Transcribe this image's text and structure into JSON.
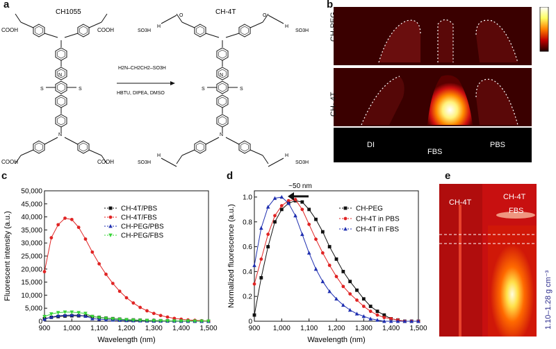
{
  "panels": {
    "a": {
      "letter": "a",
      "reactant": "CH1055",
      "product": "CH-4T",
      "reagent_formula": "H2N–CH2CH2–SO3H",
      "conditions": "HBTU, DIPEA, DMSO",
      "acid": "COOH",
      "sulfonate": "SO3H",
      "nh": "H",
      "n": "N",
      "s": "S",
      "o": "O"
    },
    "b": {
      "letter": "b",
      "row1_label": "CH-PEG",
      "row2_label": "CH- 4T",
      "labels": [
        "DI",
        "FBS",
        "PBS"
      ]
    },
    "c": {
      "letter": "c"
    },
    "d": {
      "letter": "d",
      "shift_label": "~50 nm"
    },
    "e": {
      "letter": "e",
      "tube1_label": "CH-4T",
      "tube2_label": "CH-4T",
      "tube2_sub": "FBS",
      "side_label": "1.10–1.28 g cm⁻³"
    }
  },
  "chart_data": [
    {
      "type": "scatter",
      "title": "",
      "xlabel": "Wavelength (nm)",
      "ylabel": "Fluorescent intensity (a.u.)",
      "xlim": [
        900,
        1500
      ],
      "ylim": [
        0,
        50000
      ],
      "xticks": [
        "900",
        "1,000",
        "1,100",
        "1,200",
        "1,300",
        "1,400",
        "1,500"
      ],
      "yticks": [
        "0",
        "5,000",
        "10,000",
        "15,000",
        "20,000",
        "25,000",
        "30,000",
        "35,000",
        "40,000",
        "45,000",
        "50,000"
      ],
      "x": [
        900,
        925,
        950,
        975,
        1000,
        1025,
        1050,
        1075,
        1100,
        1125,
        1150,
        1175,
        1200,
        1225,
        1250,
        1275,
        1300,
        1325,
        1350,
        1375,
        1400,
        1425,
        1450,
        1475,
        1500
      ],
      "series": [
        {
          "name": "CH-4T/PBS",
          "color": "#111111",
          "marker": "square",
          "values": [
            1000,
            1500,
            1800,
            2000,
            2100,
            2100,
            2000,
            1800,
            1500,
            1200,
            1000,
            800,
            600,
            500,
            400,
            300,
            250,
            200,
            150,
            100,
            80,
            60,
            50,
            40,
            30
          ]
        },
        {
          "name": "CH-4T/FBS",
          "color": "#e02424",
          "marker": "circle",
          "values": [
            19000,
            32000,
            37000,
            39500,
            39000,
            36000,
            31500,
            26500,
            22000,
            18000,
            14500,
            11500,
            9000,
            7000,
            5300,
            4000,
            3000,
            2200,
            1600,
            1100,
            800,
            500,
            350,
            200,
            100
          ]
        },
        {
          "name": "CH-PEG/PBS",
          "color": "#1f2fb0",
          "marker": "triangle",
          "values": [
            800,
            1600,
            2100,
            2300,
            2400,
            2300,
            2000,
            1000,
            800,
            600,
            500,
            400,
            300,
            250,
            200,
            150,
            120,
            100,
            80,
            60,
            50,
            40,
            30,
            20,
            10
          ]
        },
        {
          "name": "CH-PEG/FBS",
          "color": "#38d438",
          "marker": "triangle-down",
          "values": [
            1800,
            2800,
            3300,
            3500,
            3500,
            3300,
            3000,
            1800,
            1400,
            1100,
            900,
            700,
            550,
            400,
            300,
            250,
            200,
            150,
            100,
            80,
            60,
            50,
            40,
            30,
            20
          ]
        }
      ],
      "legend": "upper-right"
    },
    {
      "type": "scatter",
      "title": "",
      "xlabel": "Wavelength (nm)",
      "ylabel": "Normalized fluorescence  (a.u.)",
      "xlim": [
        900,
        1500
      ],
      "ylim": [
        0,
        1.05
      ],
      "xticks": [
        "900",
        "1,000",
        "1,100",
        "1,200",
        "1,300",
        "1,400",
        "1,500"
      ],
      "yticks": [
        "0",
        "0.2",
        "0.4",
        "0.6",
        "0.8",
        "1.0"
      ],
      "x": [
        900,
        925,
        950,
        975,
        1000,
        1025,
        1050,
        1075,
        1100,
        1125,
        1150,
        1175,
        1200,
        1225,
        1250,
        1275,
        1300,
        1325,
        1350,
        1375,
        1400,
        1425,
        1450,
        1475,
        1500
      ],
      "series": [
        {
          "name": "CH-PEG",
          "color": "#111111",
          "marker": "square",
          "values": [
            0.05,
            0.35,
            0.6,
            0.8,
            0.9,
            0.95,
            0.97,
            0.96,
            0.9,
            0.82,
            0.72,
            0.6,
            0.5,
            0.4,
            0.32,
            0.25,
            0.18,
            0.12,
            0.08,
            0.05,
            0.02,
            0.01,
            0.0,
            0.0,
            0.0
          ]
        },
        {
          "name": "CH-4T in PBS",
          "color": "#e02424",
          "marker": "circle",
          "values": [
            0.3,
            0.5,
            0.7,
            0.85,
            0.93,
            0.97,
            0.98,
            0.9,
            0.78,
            0.66,
            0.55,
            0.45,
            0.36,
            0.28,
            0.22,
            0.17,
            0.12,
            0.08,
            0.05,
            0.03,
            0.02,
            0.01,
            0.0,
            0.0,
            0.0
          ]
        },
        {
          "name": "CH-4T in FBS",
          "color": "#1f2fb0",
          "marker": "triangle",
          "values": [
            0.45,
            0.75,
            0.92,
            0.99,
            1.0,
            0.95,
            0.85,
            0.7,
            0.55,
            0.42,
            0.32,
            0.24,
            0.18,
            0.13,
            0.09,
            0.06,
            0.04,
            0.02,
            0.01,
            0.0,
            0.0,
            0.0,
            0.0,
            0.0,
            0.0
          ]
        }
      ],
      "legend": "upper-right"
    }
  ]
}
